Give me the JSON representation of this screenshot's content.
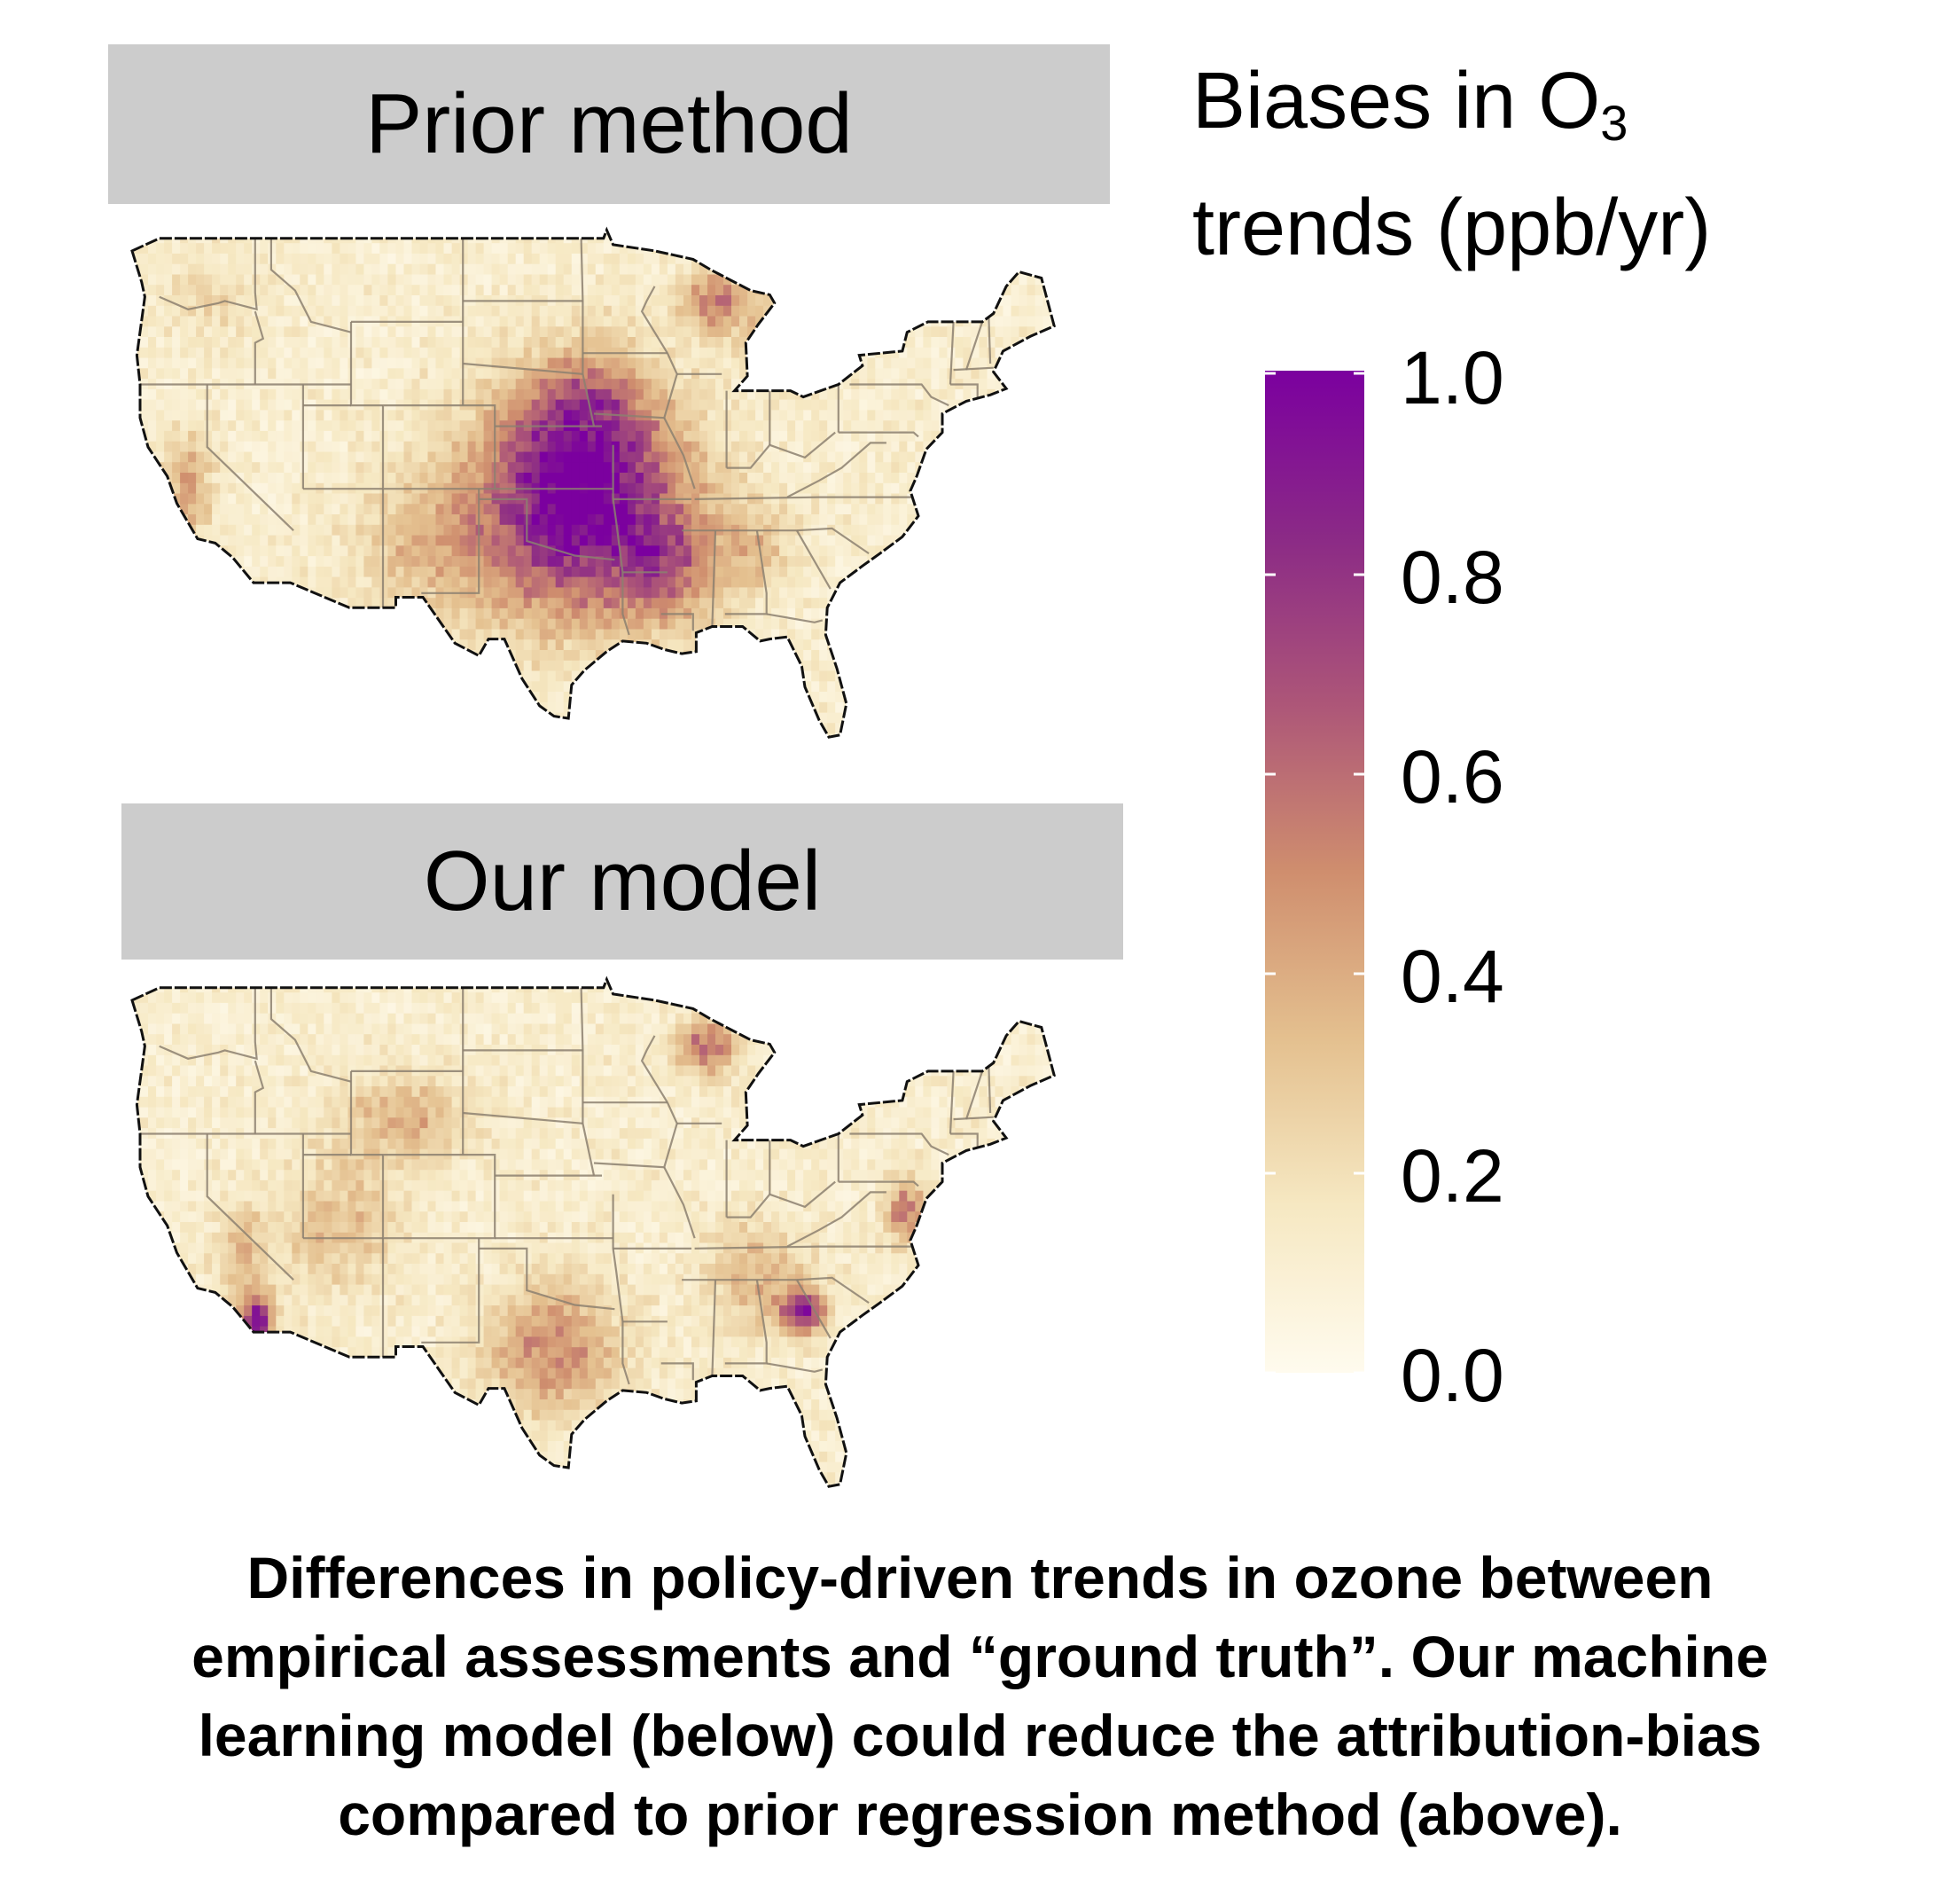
{
  "figure": {
    "panels": [
      {
        "title": "Prior method",
        "hotspot": "central-plains"
      },
      {
        "title": "Our model",
        "hotspot": "southeast"
      }
    ],
    "legend": {
      "title_line1": "Biases in O",
      "title_sub": "3",
      "title_line2": "trends (ppb/yr)",
      "ticks": [
        "1.0",
        "0.8",
        "0.6",
        "0.4",
        "0.2",
        "0.0"
      ],
      "range": [
        0.0,
        1.0
      ],
      "colors": [
        "#fffbee",
        "#f6e8c2",
        "#e4c08f",
        "#cf8e6e",
        "#ad5678",
        "#8b2a86",
        "#7b009f"
      ]
    },
    "caption_lines": [
      "Differences in policy-driven trends in ozone between",
      "empirical assessments and “ground truth”. Our machine",
      "learning model (below) could reduce the attribution-bias",
      "compared to prior regression method (above)."
    ]
  }
}
